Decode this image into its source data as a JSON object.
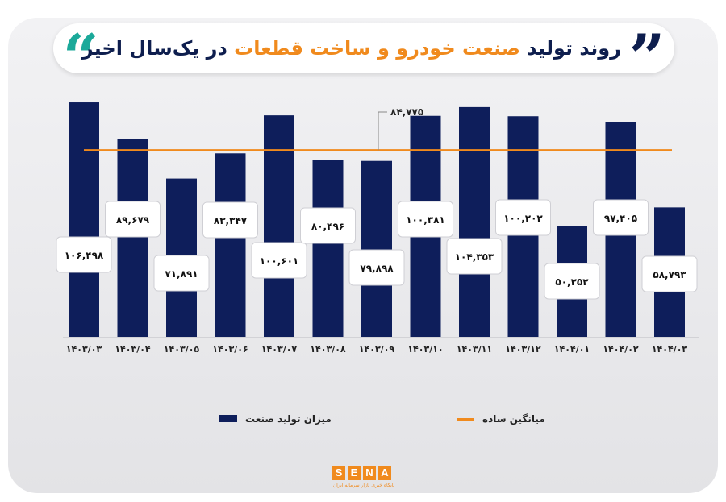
{
  "title": {
    "part1": "روند تولید",
    "part2": "صنعت خودرو و ساخت قطعات",
    "part3": "در یک‌سال اخیر",
    "quote_open": "”",
    "quote_close": "“"
  },
  "legend": {
    "bar_label": "میزان تولید صنعت",
    "line_label": "میانگین ساده"
  },
  "logo": {
    "letters": [
      "S",
      "E",
      "N",
      "A"
    ],
    "subtitle": "پایگاه خبری بازار سرمایه ایران"
  },
  "colors": {
    "bar": "#0e1e5b",
    "average_line": "#f08a1d",
    "title_dark": "#0e1e4e",
    "title_orange": "#f08a1d",
    "quote_teal": "#1ba99a"
  },
  "chart_data": {
    "type": "bar",
    "categories": [
      "۱۴۰۳/۰۳",
      "۱۴۰۳/۰۴",
      "۱۴۰۳/۰۵",
      "۱۴۰۳/۰۶",
      "۱۴۰۳/۰۷",
      "۱۴۰۳/۰۸",
      "۱۴۰۳/۰۹",
      "۱۴۰۳/۱۰",
      "۱۴۰۳/۱۱",
      "۱۴۰۳/۱۲",
      "۱۴۰۴/۰۱",
      "۱۴۰۴/۰۲",
      "۱۴۰۴/۰۳"
    ],
    "series": [
      {
        "name": "میزان تولید صنعت",
        "values": [
          106498,
          89679,
          71891,
          83347,
          100601,
          80496,
          79898,
          100381,
          104353,
          100202,
          50252,
          97405,
          58793
        ],
        "labels": [
          "۱۰۶,۴۹۸",
          "۸۹,۶۷۹",
          "۷۱,۸۹۱",
          "۸۳,۳۴۷",
          "۱۰۰,۶۰۱",
          "۸۰,۴۹۶",
          "۷۹,۸۹۸",
          "۱۰۰,۳۸۱",
          "۱۰۴,۳۵۳",
          "۱۰۰,۲۰۲",
          "۵۰,۲۵۲",
          "۹۷,۴۰۵",
          "۵۸,۷۹۳"
        ]
      }
    ],
    "average": {
      "name": "میانگین ساده",
      "value": 84775,
      "label": "۸۴,۷۷۵"
    },
    "ylim": [
      0,
      112000
    ],
    "grid": false,
    "legend_position": "bottom"
  }
}
